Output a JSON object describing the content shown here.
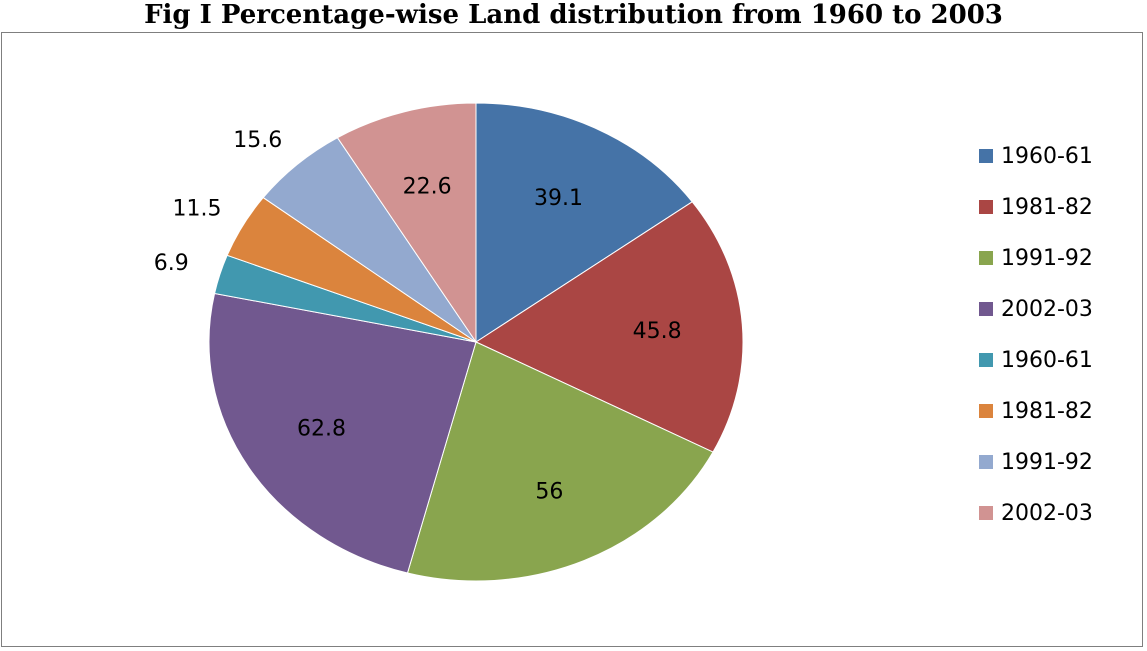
{
  "chart_data": {
    "type": "pie",
    "title": "Fig I Percentage-wise Land distribution from 1960 to 2003",
    "legend_position": "right",
    "slices": [
      {
        "label": "1960-61",
        "value": 39.1,
        "color": "#4573a7"
      },
      {
        "label": "1981-82",
        "value": 45.8,
        "color": "#aa4644"
      },
      {
        "label": "1991-92",
        "value": 56,
        "color": "#89a54e"
      },
      {
        "label": "2002-03",
        "value": 62.8,
        "color": "#71588f"
      },
      {
        "label": "1960-61",
        "value": 6.9,
        "color": "#4198af"
      },
      {
        "label": "1981-82",
        "value": 11.5,
        "color": "#db843d"
      },
      {
        "label": "1991-92",
        "value": 15.6,
        "color": "#93a9cf"
      },
      {
        "label": "2002-03",
        "value": 22.6,
        "color": "#d19392"
      }
    ]
  }
}
